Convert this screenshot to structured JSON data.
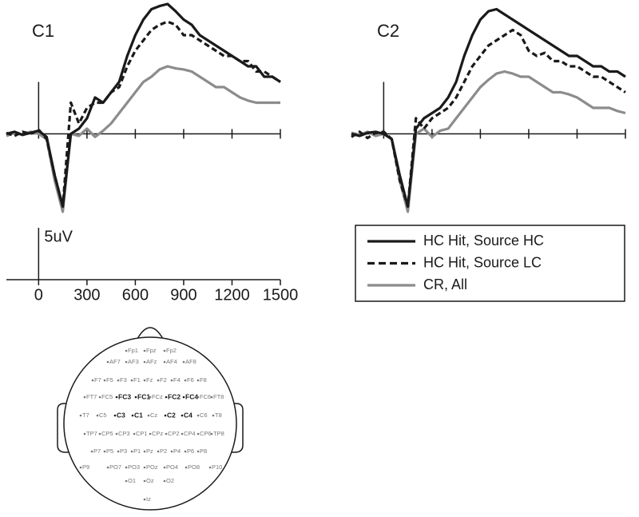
{
  "chart_data": [
    {
      "type": "line",
      "title": "C1",
      "x": [
        -200,
        -150,
        -100,
        -50,
        0,
        50,
        100,
        150,
        200,
        250,
        300,
        350,
        400,
        450,
        500,
        550,
        600,
        650,
        700,
        750,
        800,
        850,
        900,
        950,
        1000,
        1050,
        1100,
        1150,
        1200,
        1250,
        1300,
        1350,
        1400,
        1450,
        1500
      ],
      "xlim": [
        -200,
        1500
      ],
      "ylim": [
        -7.5,
        12.5
      ],
      "xticks": [
        0,
        300,
        600,
        900,
        1200,
        1500
      ],
      "series": [
        {
          "name": "HC Hit, Source HC",
          "color": "#1a1a1a",
          "dash": false,
          "values": [
            0,
            0.2,
            -0.1,
            0.1,
            0.3,
            -0.3,
            -4,
            -7,
            0,
            0.5,
            1.5,
            3.5,
            3,
            4,
            5,
            7.5,
            9.5,
            11,
            12,
            12.3,
            12.5,
            11.8,
            11,
            10.5,
            9.5,
            9,
            8.5,
            8,
            7.5,
            7,
            6.5,
            6.5,
            5.5,
            5.5,
            5
          ]
        },
        {
          "name": "HC Hit, Source LC",
          "color": "#1a1a1a",
          "dash": true,
          "values": [
            0.1,
            -0.2,
            0.2,
            0,
            0.4,
            -0.5,
            -4,
            -7,
            3,
            1,
            2.5,
            3,
            3,
            4,
            4.5,
            6.5,
            8,
            9,
            10,
            10.5,
            10.8,
            10.5,
            9.5,
            9.5,
            9,
            8.5,
            8,
            7.5,
            7.5,
            7,
            7,
            6,
            6,
            5.5,
            5
          ]
        },
        {
          "name": "CR, All",
          "color": "#8c8c8c",
          "dash": false,
          "values": [
            -0.2,
            0.1,
            -0.1,
            0.2,
            0,
            -0.5,
            -4.5,
            -7.5,
            0,
            -0.2,
            0.5,
            -0.3,
            0.3,
            1,
            2,
            3,
            4,
            5,
            5.5,
            6.2,
            6.5,
            6.3,
            6.2,
            6,
            5.5,
            5,
            4.5,
            4.5,
            4,
            3.5,
            3.2,
            3,
            3,
            3,
            3
          ]
        }
      ]
    },
    {
      "type": "line",
      "title": "C2",
      "x": [
        -200,
        -150,
        -100,
        -50,
        0,
        50,
        100,
        150,
        200,
        250,
        300,
        350,
        400,
        450,
        500,
        550,
        600,
        650,
        700,
        750,
        800,
        850,
        900,
        950,
        1000,
        1050,
        1100,
        1150,
        1200,
        1250,
        1300,
        1350,
        1400,
        1450,
        1500
      ],
      "xlim": [
        -200,
        1500
      ],
      "ylim": [
        -7.5,
        12.5
      ],
      "xticks": [
        0,
        300,
        600,
        900,
        1200,
        1500
      ],
      "series": [
        {
          "color": "#1a1a1a",
          "dash": false,
          "values": [
            0,
            -0.2,
            0.1,
            0.2,
            0,
            -0.5,
            -4,
            -7,
            0.5,
            1.5,
            2,
            2.5,
            3.5,
            5,
            7.5,
            9.5,
            11,
            11.8,
            12,
            11.5,
            11,
            10.5,
            10,
            9.5,
            9,
            8.5,
            8,
            7.5,
            7.5,
            7,
            6.5,
            6.5,
            6,
            6,
            5.5
          ]
        },
        {
          "color": "#1a1a1a",
          "dash": true,
          "values": [
            -0.3,
            0.2,
            -0.4,
            0.1,
            0.2,
            -0.5,
            -4.5,
            -7,
            1.5,
            0.5,
            1.5,
            2,
            2.5,
            3.5,
            5,
            6.5,
            7.5,
            8.5,
            9,
            9.5,
            10,
            9.5,
            8,
            7.5,
            7.8,
            7,
            7,
            6.5,
            6.5,
            6,
            5.5,
            5.5,
            5,
            4.5,
            4
          ]
        },
        {
          "color": "#8c8c8c",
          "dash": false,
          "values": [
            0.1,
            -0.1,
            0.2,
            -0.2,
            0,
            -0.5,
            -4.5,
            -7.5,
            0,
            0.5,
            -0.3,
            0.3,
            0.5,
            1.5,
            2.5,
            3.5,
            4.5,
            5.2,
            5.8,
            6,
            5.8,
            5.5,
            5.5,
            5,
            4.5,
            4,
            4,
            3.8,
            3.5,
            3,
            2.5,
            2.5,
            2.5,
            2.2,
            2
          ]
        }
      ]
    }
  ],
  "scale_panel": {
    "xlim": [
      -200,
      1500
    ],
    "xticks": [
      0,
      300,
      600,
      900,
      1200,
      1500
    ],
    "bar_label": "5uV",
    "bar_value": 5
  },
  "electrode_map": {
    "electrodes": [
      {
        "label": "Fp1",
        "bold": false
      },
      {
        "label": "Fpz",
        "bold": false
      },
      {
        "label": "Fp2",
        "bold": false
      },
      {
        "label": "AF7",
        "bold": false
      },
      {
        "label": "AF3",
        "bold": false
      },
      {
        "label": "AFz",
        "bold": false
      },
      {
        "label": "AF4",
        "bold": false
      },
      {
        "label": "AF8",
        "bold": false
      },
      {
        "label": "F7",
        "bold": false
      },
      {
        "label": "F5",
        "bold": false
      },
      {
        "label": "F3",
        "bold": false
      },
      {
        "label": "F1",
        "bold": false
      },
      {
        "label": "Fz",
        "bold": false
      },
      {
        "label": "F2",
        "bold": false
      },
      {
        "label": "F4",
        "bold": false
      },
      {
        "label": "F6",
        "bold": false
      },
      {
        "label": "F8",
        "bold": false
      },
      {
        "label": "FT7",
        "bold": false
      },
      {
        "label": "FC5",
        "bold": false
      },
      {
        "label": "FC3",
        "bold": true
      },
      {
        "label": "FC1",
        "bold": true
      },
      {
        "label": "FCz",
        "bold": false
      },
      {
        "label": "FC2",
        "bold": true
      },
      {
        "label": "FC4",
        "bold": true
      },
      {
        "label": "FC6",
        "bold": false
      },
      {
        "label": "FT8",
        "bold": false
      },
      {
        "label": "T7",
        "bold": false
      },
      {
        "label": "C5",
        "bold": false
      },
      {
        "label": "C3",
        "bold": true
      },
      {
        "label": "C1",
        "bold": true
      },
      {
        "label": "Cz",
        "bold": false
      },
      {
        "label": "C2",
        "bold": true
      },
      {
        "label": "C4",
        "bold": true
      },
      {
        "label": "C6",
        "bold": false
      },
      {
        "label": "T8",
        "bold": false
      },
      {
        "label": "TP7",
        "bold": false
      },
      {
        "label": "CP5",
        "bold": false
      },
      {
        "label": "CP3",
        "bold": false
      },
      {
        "label": "CP1",
        "bold": false
      },
      {
        "label": "CPz",
        "bold": false
      },
      {
        "label": "CP2",
        "bold": false
      },
      {
        "label": "CP4",
        "bold": false
      },
      {
        "label": "CP6",
        "bold": false
      },
      {
        "label": "TP8",
        "bold": false
      },
      {
        "label": "P7",
        "bold": false
      },
      {
        "label": "P5",
        "bold": false
      },
      {
        "label": "P3",
        "bold": false
      },
      {
        "label": "P1",
        "bold": false
      },
      {
        "label": "Pz",
        "bold": false
      },
      {
        "label": "P2",
        "bold": false
      },
      {
        "label": "P4",
        "bold": false
      },
      {
        "label": "P6",
        "bold": false
      },
      {
        "label": "P8",
        "bold": false
      },
      {
        "label": "P9",
        "bold": false
      },
      {
        "label": "PO7",
        "bold": false
      },
      {
        "label": "PO3",
        "bold": false
      },
      {
        "label": "POz",
        "bold": false
      },
      {
        "label": "PO4",
        "bold": false
      },
      {
        "label": "PO8",
        "bold": false
      },
      {
        "label": "P10",
        "bold": false
      },
      {
        "label": "O1",
        "bold": false
      },
      {
        "label": "Oz",
        "bold": false
      },
      {
        "label": "O2",
        "bold": false
      },
      {
        "label": "Iz",
        "bold": false
      }
    ]
  }
}
